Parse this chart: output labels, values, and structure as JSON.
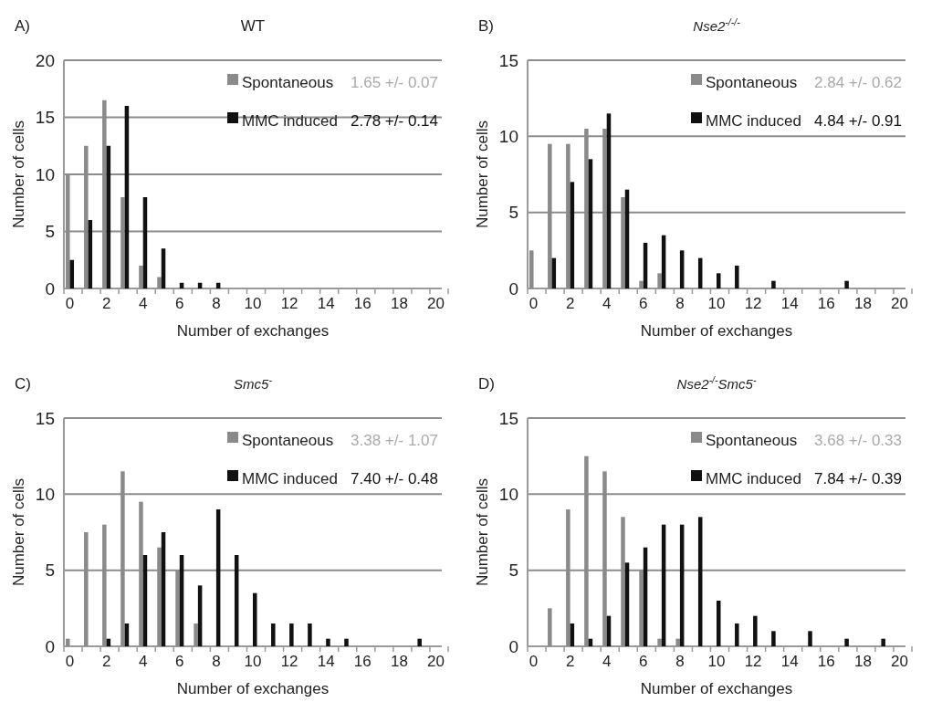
{
  "chart_data": [
    {
      "type": "bar",
      "title": "WT",
      "xlabel": "Number of exchanges",
      "ylabel": "Number of cells",
      "categories": [
        "0",
        null,
        "2",
        null,
        "4",
        null,
        "6",
        null,
        "8",
        null,
        "10",
        null,
        "12",
        null,
        "14",
        null,
        "16",
        null,
        "18",
        null,
        "20"
      ],
      "ylim": [
        0,
        20
      ],
      "yticks": [
        0,
        5,
        10,
        15,
        20
      ],
      "grid": "y",
      "legend": "top right",
      "annotations": [
        "A)",
        "1.65 +/- 0.07",
        "2.78 +/- 0.14"
      ],
      "series": [
        {
          "name": "Spontaneous",
          "color": "#8a8a8a",
          "values": [
            10,
            12.5,
            16.5,
            8,
            2,
            1,
            0,
            0,
            0,
            0,
            0,
            0,
            0,
            0,
            0,
            0,
            0,
            0,
            0,
            0,
            0
          ]
        },
        {
          "name": "MMC induced",
          "color": "#111111",
          "values": [
            2.5,
            6,
            12.5,
            16,
            8,
            3.5,
            0.5,
            0.5,
            0.5,
            0,
            0,
            0,
            0,
            0,
            0,
            0,
            0,
            0,
            0,
            0,
            0
          ]
        }
      ]
    },
    {
      "type": "bar",
      "title": "Nse2$^{-/-/-}$",
      "xlabel": "Number of exchanges",
      "ylabel": "Number of cells",
      "categories": [
        "0",
        null,
        "2",
        null,
        "4",
        null,
        "6",
        null,
        "8",
        null,
        "10",
        null,
        "12",
        null,
        "14",
        null,
        "16",
        null,
        "18",
        null,
        "20"
      ],
      "ylim": [
        0,
        15
      ],
      "yticks": [
        0,
        5,
        10,
        15
      ],
      "grid": "y",
      "legend": "top right",
      "annotations": [
        "B)",
        "2.84 +/- 0.62",
        "4.84 +/- 0.91"
      ],
      "series": [
        {
          "name": "Spontaneous",
          "color": "#8a8a8a",
          "values": [
            2.5,
            9.5,
            9.5,
            10.5,
            10.5,
            6,
            0.5,
            1,
            0,
            0,
            0,
            0,
            0,
            0,
            0,
            0,
            0,
            0,
            0,
            0,
            0
          ]
        },
        {
          "name": "MMC induced",
          "color": "#111111",
          "values": [
            0,
            2,
            7,
            8.5,
            11.5,
            6.5,
            3,
            3.5,
            2.5,
            2,
            1,
            1.5,
            0,
            0.5,
            0,
            0,
            0,
            0.5,
            0,
            0,
            0
          ]
        }
      ]
    },
    {
      "type": "bar",
      "title": "Smc5$^{-}$",
      "xlabel": "Number of exchanges",
      "ylabel": "Number of cells",
      "categories": [
        "0",
        null,
        "2",
        null,
        "4",
        null,
        "6",
        null,
        "8",
        null,
        "10",
        null,
        "12",
        null,
        "14",
        null,
        "16",
        null,
        "18",
        null,
        "20"
      ],
      "ylim": [
        0,
        15
      ],
      "yticks": [
        0,
        5,
        10,
        15
      ],
      "grid": "y",
      "legend": "top right",
      "annotations": [
        "C)",
        "3.38 +/- 1.07",
        "7.40 +/- 0.48"
      ],
      "series": [
        {
          "name": "Spontaneous",
          "color": "#8a8a8a",
          "values": [
            0.5,
            7.5,
            8,
            11.5,
            9.5,
            6.5,
            5,
            1.5,
            0,
            0,
            0,
            0,
            0,
            0,
            0,
            0,
            0,
            0,
            0,
            0,
            0
          ]
        },
        {
          "name": "MMC induced",
          "color": "#111111",
          "values": [
            0,
            0,
            0.5,
            1.5,
            6,
            7.5,
            6,
            4,
            9,
            6,
            3.5,
            1.5,
            1.5,
            1.5,
            0.5,
            0.5,
            0,
            0,
            0,
            0.5,
            0
          ]
        }
      ]
    },
    {
      "type": "bar",
      "title": "Nse2$^{-/-}$Smc5$^{-}$",
      "xlabel": "Number of exchanges",
      "ylabel": "Number of cells",
      "categories": [
        "0",
        null,
        "2",
        null,
        "4",
        null,
        "6",
        null,
        "8",
        null,
        "10",
        null,
        "12",
        null,
        "14",
        null,
        "16",
        null,
        "18",
        null,
        "20"
      ],
      "ylim": [
        0,
        15
      ],
      "yticks": [
        0,
        5,
        10,
        15
      ],
      "grid": "y",
      "legend": "top right",
      "annotations": [
        "D)",
        "3.68 +/- 0.33",
        "7.84 +/- 0.39"
      ],
      "series": [
        {
          "name": "Spontaneous",
          "color": "#8a8a8a",
          "values": [
            0,
            2.5,
            9,
            12.5,
            11.5,
            8.5,
            5,
            0.5,
            0.5,
            0,
            0,
            0,
            0,
            0,
            0,
            0,
            0,
            0,
            0,
            0,
            0
          ]
        },
        {
          "name": "MMC induced",
          "color": "#111111",
          "values": [
            0,
            0,
            1.5,
            0.5,
            2,
            5.5,
            6.5,
            8,
            8,
            8.5,
            3,
            1.5,
            2,
            1,
            0,
            1,
            0,
            0.5,
            0,
            0.5,
            0
          ]
        }
      ]
    }
  ]
}
